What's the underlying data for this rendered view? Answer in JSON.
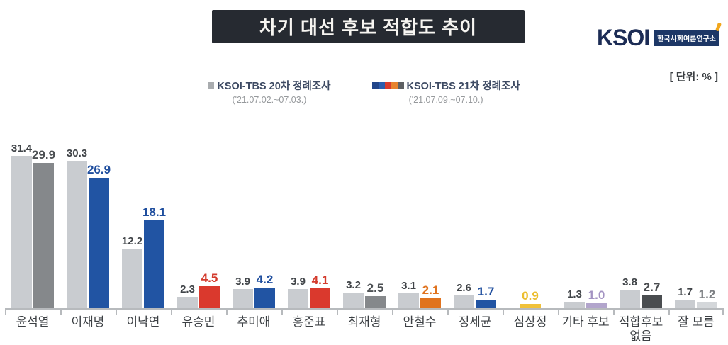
{
  "header": {
    "title": "차기 대선 후보 적합도 추이",
    "unit_label": "[ 단위: % ]"
  },
  "brand": {
    "name": "KSOI",
    "subtitle": "한국사회여론연구소"
  },
  "legend": {
    "items": [
      {
        "name": "KSOI-TBS 20차 정례조사",
        "period": "('21.07.02.~07.03.)",
        "swatches": [
          "#a9acaf"
        ]
      },
      {
        "name": "KSOI-TBS 21차 정례조사",
        "period": "('21.07.09.~07.10.)",
        "swatches": [
          "#22468a",
          "#2c5cad",
          "#d93a2d",
          "#e8832c",
          "#5d6063"
        ]
      }
    ]
  },
  "chart_data": {
    "type": "bar",
    "title": "차기 대선 후보 적합도 추이",
    "unit": "%",
    "legend_position": "top",
    "grid": false,
    "ylim": [
      0,
      34
    ],
    "categories": [
      "윤석열",
      "이재명",
      "이낙연",
      "유승민",
      "추미애",
      "홍준표",
      "최재형",
      "안철수",
      "정세균",
      "심상정",
      "기타 후보",
      "적합후보 없음",
      "잘 모름"
    ],
    "series": [
      {
        "name": "KSOI-TBS 20차 정례조사",
        "period": "('21.07.02.~07.03.)",
        "values": [
          31.4,
          30.3,
          12.2,
          2.3,
          3.9,
          3.9,
          3.2,
          3.1,
          2.6,
          null,
          1.3,
          3.8,
          1.7
        ],
        "bar_color": "#c9ccd0",
        "label_color": "#404448"
      },
      {
        "name": "KSOI-TBS 21차 정례조사",
        "period": "('21.07.09.~07.10.)",
        "values": [
          29.9,
          26.9,
          18.1,
          4.5,
          4.2,
          4.1,
          2.5,
          2.1,
          1.7,
          0.9,
          1.0,
          2.7,
          1.2
        ],
        "bar_colors": [
          "#85888b",
          "#2154a3",
          "#2154a3",
          "#da392d",
          "#2154a3",
          "#da392d",
          "#85888b",
          "#e0731f",
          "#2154a3",
          "#f0c13a",
          "#b2a5cc",
          "#4a4d50",
          "#d4d7da"
        ],
        "label_colors": [
          "#4d5154",
          "#1f4e9e",
          "#1f4e9e",
          "#d33a2c",
          "#1f4e9e",
          "#d33a2c",
          "#4d5154",
          "#e0731f",
          "#1f4e9e",
          "#ecbe30",
          "#a393c2",
          "#494c4f",
          "#7d8084"
        ]
      }
    ]
  }
}
